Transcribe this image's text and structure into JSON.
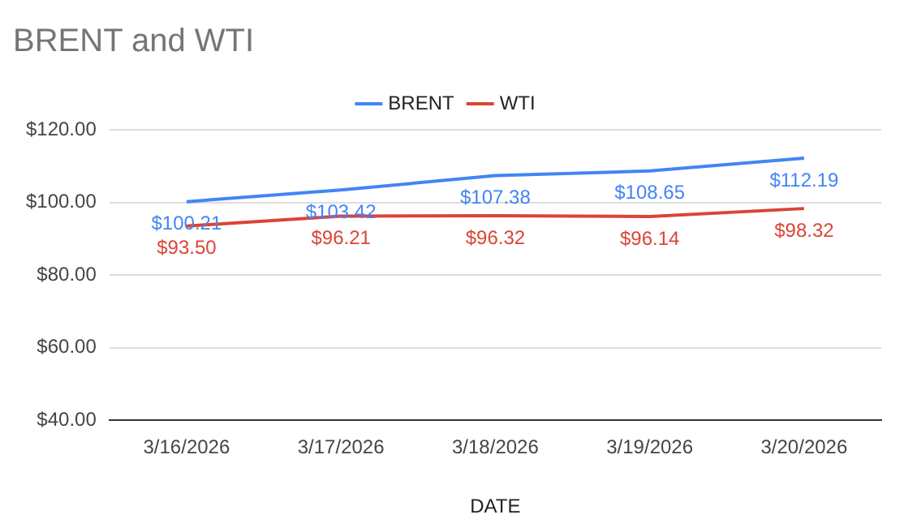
{
  "chart_data": {
    "type": "line",
    "title": "BRENT and WTI",
    "xlabel": "DATE",
    "categories": [
      "3/16/2026",
      "3/17/2026",
      "3/18/2026",
      "3/19/2026",
      "3/20/2026"
    ],
    "series": [
      {
        "name": "BRENT",
        "color": "#4285f4",
        "values": [
          100.21,
          103.42,
          107.38,
          108.65,
          112.19
        ],
        "value_labels": [
          "$100.21",
          "$103.42",
          "$107.38",
          "$108.65",
          "$112.19"
        ]
      },
      {
        "name": "WTI",
        "color": "#db4437",
        "values": [
          93.5,
          96.21,
          96.32,
          96.14,
          98.32
        ],
        "value_labels": [
          "$93.50",
          "$96.21",
          "$96.32",
          "$96.14",
          "$98.32"
        ]
      }
    ],
    "ylim": [
      40,
      120
    ],
    "yticks": [
      {
        "value": 40,
        "label": "$40.00"
      },
      {
        "value": 60,
        "label": "$60.00"
      },
      {
        "value": 80,
        "label": "$80.00"
      },
      {
        "value": 100,
        "label": "$100.00"
      },
      {
        "value": 120,
        "label": "$120.00"
      }
    ],
    "grid": "y",
    "legend": "top",
    "marker": "none",
    "line_style": "solid"
  }
}
